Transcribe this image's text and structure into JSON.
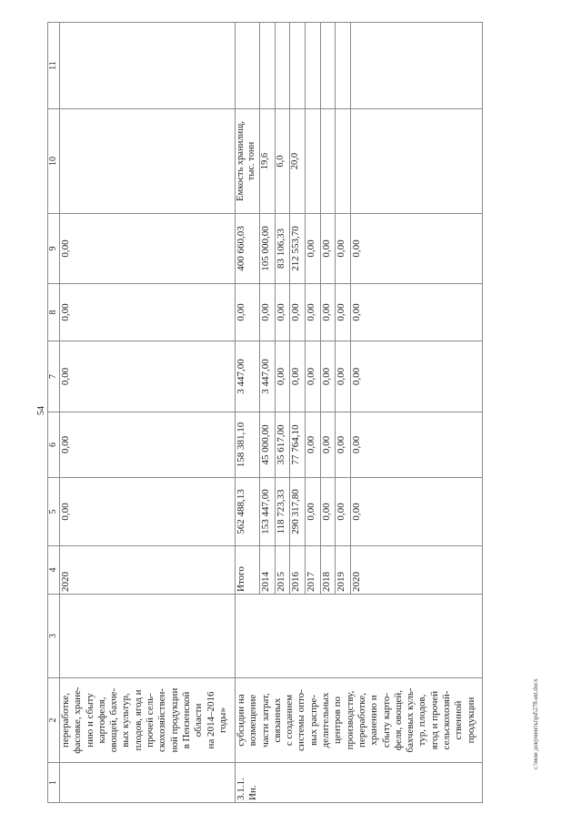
{
  "page_number": "54",
  "footer_path": "c:\\мои документы\\pd\\278-ип.docx",
  "column_headers": [
    "1",
    "2",
    "3",
    "4",
    "5",
    "6",
    "7",
    "8",
    "9",
    "10",
    "11"
  ],
  "continuation_row": {
    "col1": "",
    "col2": "переработке,\nфасовке, хране-\nнию и сбыту\nкартофеля,\nовощей, бахче-\nвых культур,\nплодов, ягод и\nпрочей сель-\nскохозяйствен-\nной продукции\nв Пензенской\nобласти\nна 2014–2016\nгоды»",
    "col3": "",
    "year": "2020",
    "values": [
      "0,00",
      "0,00",
      "0,00",
      "0,00",
      "0,00"
    ],
    "col10": "",
    "col11": ""
  },
  "item": {
    "number": "3.1.1.\nИн.",
    "description": "субсидии на\nвозмещение\nчасти затрат,\nсвязанных\nс созданием\nсистемы опто-\nвых распре-\nделительных\nцентров по\nпроизводству,\nпереработке,\nхранению и\nсбыту карто-\nфеля, овощей,\nбахчевых куль-\nтур, плодов,\nягод и прочей\nсельскохозяй-\nственной\nпродукции",
    "col3": "",
    "rows": [
      {
        "year": "Итого",
        "values": [
          "562 488,13",
          "158 381,10",
          "3 447,00",
          "0,00",
          "400 660,03"
        ],
        "col10": "Емкость хранилищ,\nтыс. тонн",
        "col11": ""
      },
      {
        "year": "2014",
        "values": [
          "153 447,00",
          "45 000,00",
          "3 447,00",
          "0,00",
          "105 000,00"
        ],
        "col10": "19,6",
        "col11": ""
      },
      {
        "year": "2015",
        "values": [
          "118 723,33",
          "35 617,00",
          "0,00",
          "0,00",
          "83 106,33"
        ],
        "col10": "6,0",
        "col11": ""
      },
      {
        "year": "2016",
        "values": [
          "290 317,80",
          "77 764,10",
          "0,00",
          "0,00",
          "212 553,70"
        ],
        "col10": "20,0",
        "col11": ""
      },
      {
        "year": "2017",
        "values": [
          "0,00",
          "0,00",
          "0,00",
          "0,00",
          "0,00"
        ],
        "col10": "",
        "col11": ""
      },
      {
        "year": "2018",
        "values": [
          "0,00",
          "0,00",
          "0,00",
          "0,00",
          "0,00"
        ],
        "col10": "",
        "col11": ""
      },
      {
        "year": "2019",
        "values": [
          "0,00",
          "0,00",
          "0,00",
          "0,00",
          "0,00"
        ],
        "col10": "",
        "col11": ""
      },
      {
        "year": "2020",
        "values": [
          "0,00",
          "0,00",
          "0,00",
          "0,00",
          "0,00"
        ],
        "col10": "",
        "col11": ""
      }
    ]
  }
}
